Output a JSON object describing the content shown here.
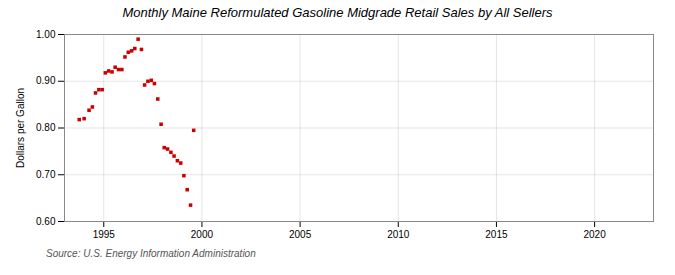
{
  "chart_data": {
    "type": "scatter",
    "title": "Monthly Maine Reformulated Gasoline Midgrade Retail Sales by All Sellers",
    "ylabel": "Dollars per Gallon",
    "annotations": [
      "Source: U.S. Energy Information Administration"
    ],
    "color": "#cc0000",
    "marker": "square",
    "grid": true,
    "xlim": [
      1993.0,
      2023.0
    ],
    "ylim": [
      0.6,
      1.0
    ],
    "xticks": [
      1995,
      2000,
      2005,
      2010,
      2015,
      2020
    ],
    "yticks": [
      {
        "value": 0.6,
        "label": "0.60"
      },
      {
        "value": 0.7,
        "label": "0.70"
      },
      {
        "value": 0.8,
        "label": "0.80"
      },
      {
        "value": 0.9,
        "label": "0.90"
      },
      {
        "value": 1.0,
        "label": "1.00"
      }
    ],
    "x": [
      1993.75,
      1994.0,
      1994.25,
      1994.42,
      1994.58,
      1994.75,
      1994.92,
      1995.08,
      1995.25,
      1995.42,
      1995.58,
      1995.75,
      1995.92,
      1996.08,
      1996.25,
      1996.42,
      1996.58,
      1996.75,
      1996.92,
      1997.08,
      1997.25,
      1997.42,
      1997.58,
      1997.75,
      1997.92,
      1998.08,
      1998.25,
      1998.42,
      1998.58,
      1998.75,
      1998.92,
      1999.08,
      1999.25,
      1999.42,
      1999.58
    ],
    "values": [
      0.818,
      0.82,
      0.838,
      0.845,
      0.875,
      0.882,
      0.882,
      0.918,
      0.922,
      0.92,
      0.93,
      0.925,
      0.925,
      0.952,
      0.962,
      0.965,
      0.97,
      0.99,
      0.968,
      0.892,
      0.9,
      0.902,
      0.895,
      0.862,
      0.808,
      0.758,
      0.755,
      0.748,
      0.74,
      0.73,
      0.725,
      0.698,
      0.668,
      0.635,
      0.795
    ]
  }
}
